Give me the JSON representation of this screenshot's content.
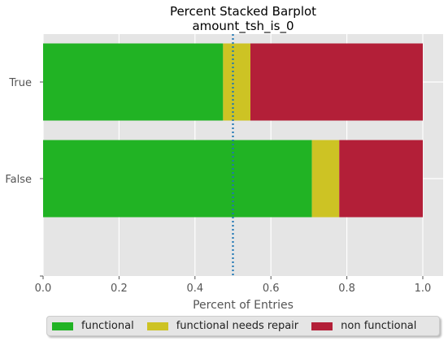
{
  "chart_data": {
    "type": "bar",
    "orientation": "horizontal",
    "stacked": "percent",
    "title": "Percent Stacked Barplot",
    "subtitle": "amount_tsh_is_0",
    "xlabel": "Percent of Entries",
    "ylabel": "",
    "xlim": [
      0,
      1.0
    ],
    "x_ticks": [
      "0.0",
      "0.2",
      "0.4",
      "0.6",
      "0.8",
      "1.0"
    ],
    "categories": [
      "True",
      "False"
    ],
    "series": [
      {
        "name": "functional",
        "values": [
          0.474,
          0.708
        ],
        "color": "#21b324"
      },
      {
        "name": "functional needs repair",
        "values": [
          0.072,
          0.072
        ],
        "color": "#cdc324"
      },
      {
        "name": "non functional",
        "values": [
          0.454,
          0.22
        ],
        "color": "#b31f38"
      }
    ],
    "reference_line": {
      "x": 0.5,
      "style": "dotted",
      "color": "#1f77b4"
    },
    "grid": true,
    "legend_position": "bottom"
  }
}
